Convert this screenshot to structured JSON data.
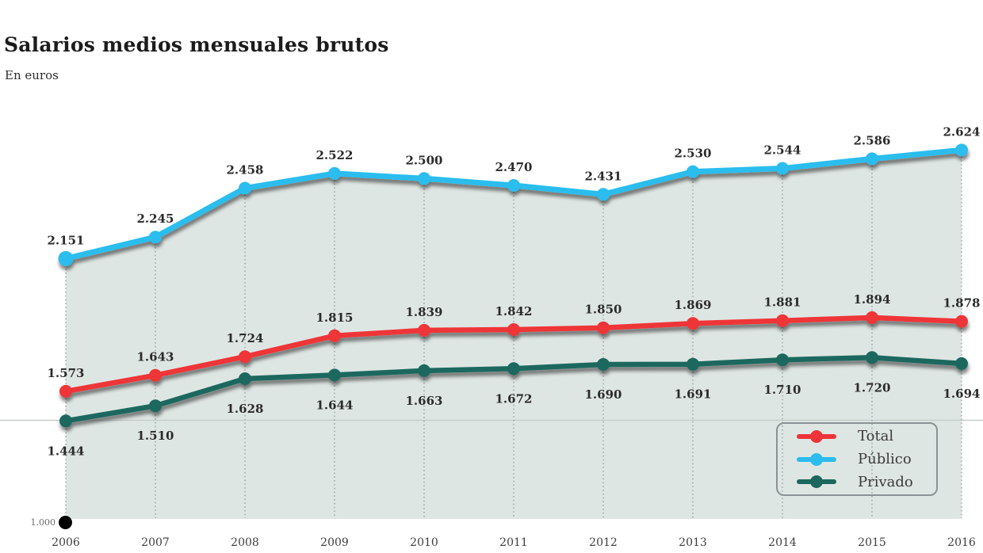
{
  "header": {
    "title": "Salarios medios mensuales brutos",
    "subtitle": "En euros"
  },
  "chart_data": {
    "type": "line",
    "title": "Salarios medios mensuales brutos",
    "subtitle": "En euros",
    "categories": [
      "2006",
      "2007",
      "2008",
      "2009",
      "2010",
      "2011",
      "2012",
      "2013",
      "2014",
      "2015",
      "2016"
    ],
    "series": [
      {
        "name": "Total",
        "color": "#ee3438",
        "values": [
          1573,
          1643,
          1724,
          1815,
          1839,
          1842,
          1850,
          1869,
          1881,
          1894,
          1878
        ],
        "labels": [
          "1.573",
          "1.643",
          "1.724",
          "1.815",
          "1.839",
          "1.842",
          "1.850",
          "1.869",
          "1.881",
          "1.894",
          "1.878"
        ],
        "label_position": "above",
        "area": false
      },
      {
        "name": "Público",
        "color": "#2abdee",
        "values": [
          2151,
          2245,
          2458,
          2522,
          2500,
          2470,
          2431,
          2530,
          2544,
          2586,
          2624
        ],
        "labels": [
          "2.151",
          "2.245",
          "2.458",
          "2.522",
          "2.500",
          "2.470",
          "2.431",
          "2.530",
          "2.544",
          "2.586",
          "2.624"
        ],
        "label_position": "above",
        "area": true
      },
      {
        "name": "Privado",
        "color": "#1a675f",
        "values": [
          1444,
          1510,
          1628,
          1644,
          1663,
          1672,
          1690,
          1691,
          1710,
          1720,
          1694
        ],
        "labels": [
          "1.444",
          "1.510",
          "1.628",
          "1.644",
          "1.663",
          "1.672",
          "1.690",
          "1.691",
          "1.710",
          "1.720",
          "1.694"
        ],
        "label_position": "below",
        "area": false
      }
    ],
    "baseline": {
      "value": 1000,
      "label": "1.000"
    },
    "ylim": [
      1000,
      2800
    ],
    "xlabel": "",
    "ylabel": "",
    "grid": "vertical-dotted",
    "area_fill_color": "#dee6e3",
    "legend_position": "bottom-right"
  },
  "legend": {
    "items": [
      {
        "label": "Total",
        "color": "#ee3438"
      },
      {
        "label": "Público",
        "color": "#2abdee"
      },
      {
        "label": "Privado",
        "color": "#1a675f"
      }
    ]
  }
}
